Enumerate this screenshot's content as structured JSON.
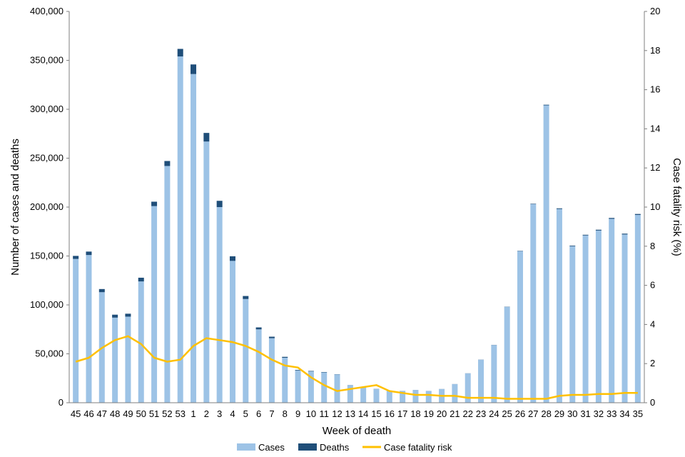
{
  "chart_data": {
    "type": "bar",
    "stacked": true,
    "title": "",
    "xlabel": "Week of death",
    "ylabel_left": "Number of cases and deaths",
    "ylabel_right": "Case fatality risk (%)",
    "ylim_left": [
      0,
      400000
    ],
    "ylim_right": [
      0,
      20
    ],
    "yticks_left": [
      "0",
      "50,000",
      "100,000",
      "150,000",
      "200,000",
      "250,000",
      "300,000",
      "350,000",
      "400,000"
    ],
    "yticks_right": [
      "0",
      "2",
      "4",
      "6",
      "8",
      "10",
      "12",
      "14",
      "16",
      "18",
      "20"
    ],
    "grid": false,
    "legend_position": "bottom",
    "categories": [
      "45",
      "46",
      "47",
      "48",
      "49",
      "50",
      "51",
      "52",
      "53",
      "1",
      "2",
      "3",
      "4",
      "5",
      "6",
      "7",
      "8",
      "9",
      "10",
      "11",
      "12",
      "13",
      "14",
      "15",
      "16",
      "17",
      "18",
      "19",
      "20",
      "21",
      "22",
      "23",
      "24",
      "25",
      "26",
      "27",
      "28",
      "29",
      "30",
      "31",
      "32",
      "33",
      "34",
      "35"
    ],
    "series": [
      {
        "name": "Cases",
        "type": "bar",
        "axis": "left",
        "color": "#9DC3E6",
        "values": [
          147000,
          151000,
          113000,
          87000,
          88000,
          124000,
          201000,
          242000,
          354000,
          336000,
          267000,
          200000,
          145000,
          106000,
          75000,
          66000,
          46000,
          33000,
          32000,
          31000,
          29000,
          18000,
          16000,
          14000,
          12000,
          12000,
          13000,
          12000,
          14000,
          19000,
          30000,
          44000,
          59000,
          98000,
          155000,
          203000,
          304000,
          198000,
          160000,
          171000,
          176000,
          188000,
          172000,
          192000
        ]
      },
      {
        "name": "Deaths",
        "type": "bar",
        "axis": "left",
        "color": "#1F4E79",
        "values": [
          3100,
          3500,
          3200,
          3000,
          3000,
          3800,
          4500,
          5100,
          7700,
          9800,
          8800,
          6400,
          4700,
          3100,
          2000,
          1500,
          900,
          600,
          500,
          400,
          200,
          100,
          150,
          150,
          100,
          80,
          70,
          60,
          60,
          70,
          90,
          110,
          150,
          200,
          320,
          430,
          620,
          750,
          650,
          700,
          850,
          900,
          850,
          950
        ]
      },
      {
        "name": "Case fatality risk",
        "type": "line",
        "axis": "right",
        "color": "#FFC000",
        "values": [
          2.1,
          2.3,
          2.8,
          3.2,
          3.4,
          3.0,
          2.3,
          2.1,
          2.2,
          2.9,
          3.3,
          3.2,
          3.1,
          2.9,
          2.6,
          2.2,
          1.9,
          1.8,
          1.3,
          0.9,
          0.6,
          0.7,
          0.8,
          0.9,
          0.6,
          0.5,
          0.4,
          0.4,
          0.35,
          0.35,
          0.25,
          0.25,
          0.25,
          0.2,
          0.2,
          0.2,
          0.2,
          0.35,
          0.4,
          0.4,
          0.45,
          0.45,
          0.5,
          0.5
        ]
      }
    ]
  }
}
